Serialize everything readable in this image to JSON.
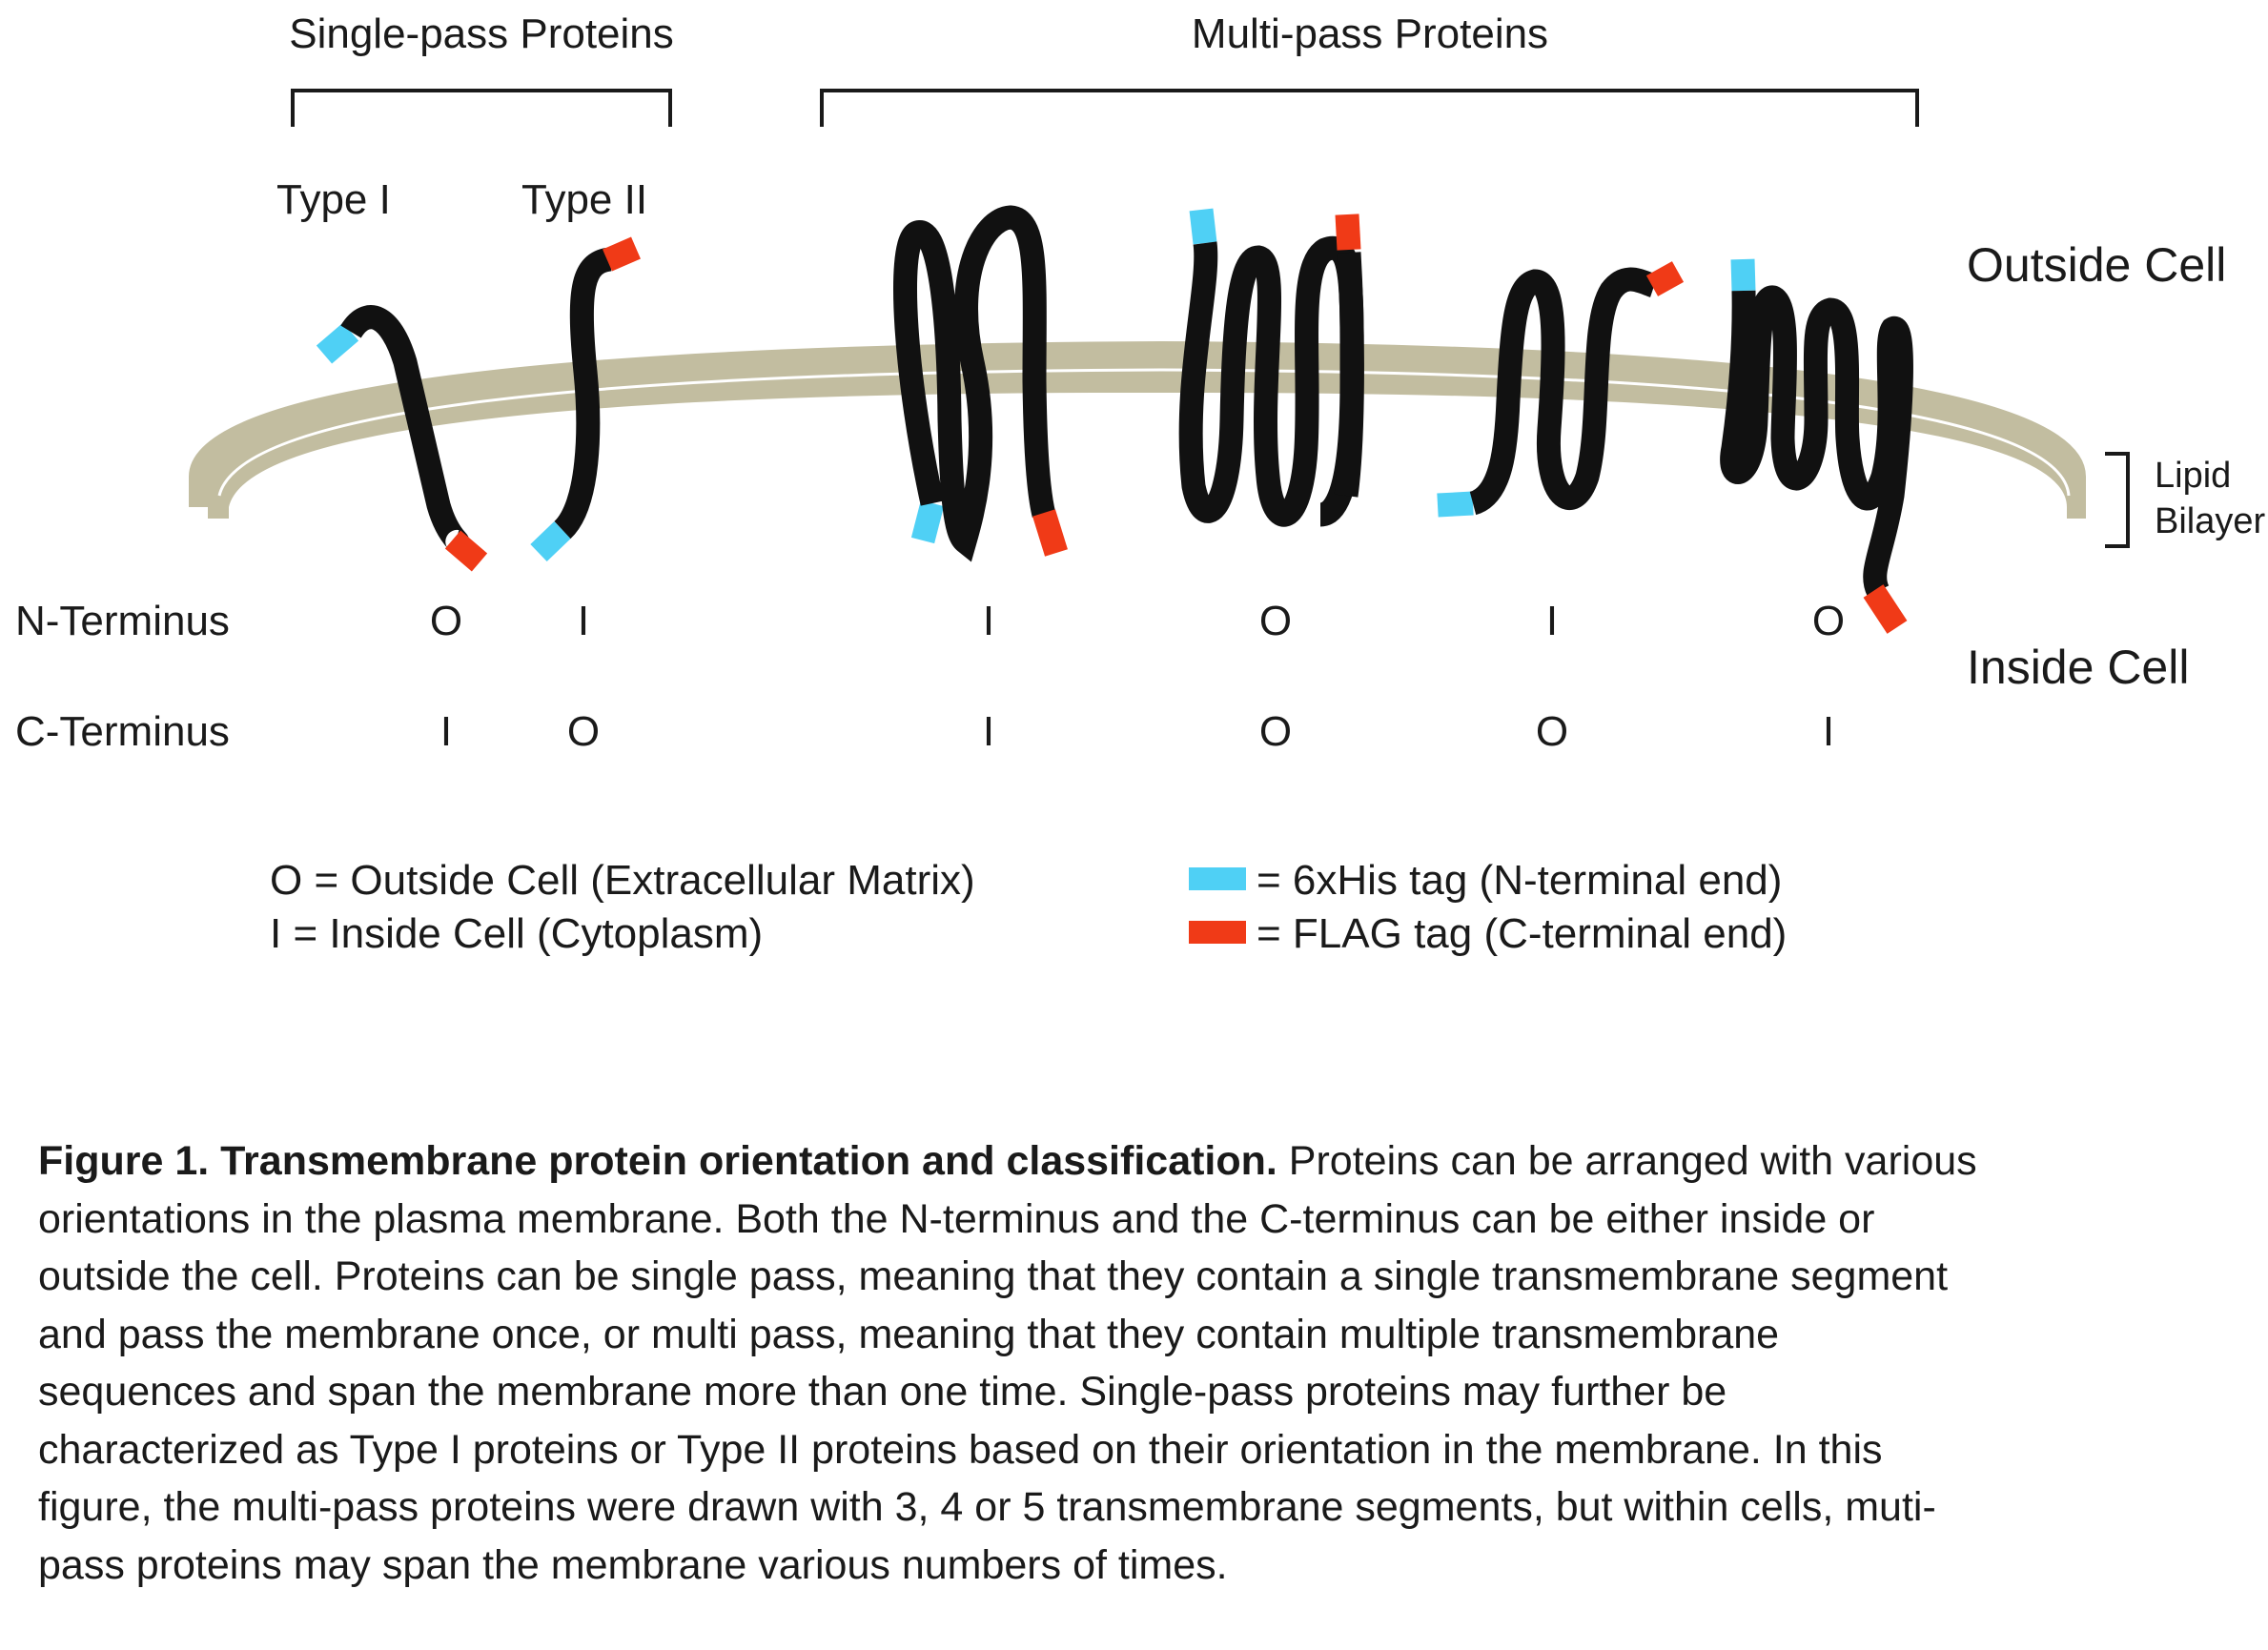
{
  "group_labels": {
    "single": "Single-pass Proteins",
    "multi": "Multi-pass Proteins"
  },
  "type_labels": {
    "type1": "Type I",
    "type2": "Type II"
  },
  "regions": {
    "outside": "Outside Cell",
    "inside": "Inside Cell"
  },
  "bilayer_label": {
    "line1": "Lipid",
    "line2": "Bilayer"
  },
  "row_labels": {
    "n": "N-Terminus",
    "c": "C-Terminus"
  },
  "n_terminus": [
    "O",
    "I",
    "I",
    "O",
    "I",
    "O"
  ],
  "c_terminus": [
    "I",
    "O",
    "I",
    "O",
    "O",
    "I"
  ],
  "legend": {
    "o_def": "O = Outside Cell (Extracellular Matrix)",
    "i_def": "I   = Inside Cell (Cytoplasm)",
    "his": "= 6xHis tag (N-terminal end)",
    "flag": "= FLAG tag (C-terminal end)"
  },
  "colors": {
    "membrane": "#c2bda0",
    "protein": "#111111",
    "his_tag": "#4fd0f5",
    "flag_tag": "#f03a17"
  },
  "caption": {
    "bold": "Figure 1. Transmembrane protein orientation and classification.",
    "text": " Proteins can be arranged with various orientations in the plasma membrane. Both the N-terminus and the C-terminus can be either inside or outside the cell. Proteins can be single pass, meaning that they contain a single transmembrane segment and pass the membrane once, or multi pass, meaning that they contain multiple transmembrane sequences and span the membrane more than one time. Single-pass proteins may further be characterized as Type I proteins or Type II proteins based on their orientation in the membrane. In this figure, the multi-pass proteins were drawn with 3, 4 or 5 transmembrane segments, but within cells, muti-pass proteins may span the membrane various numbers of times."
  }
}
